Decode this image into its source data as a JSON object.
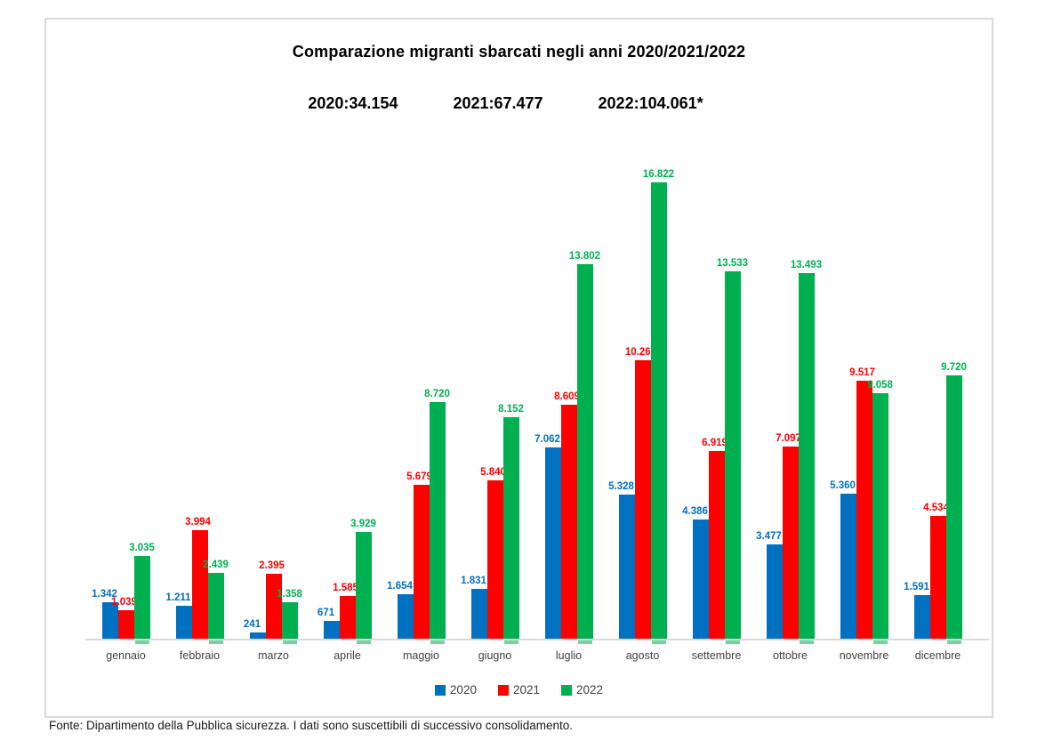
{
  "chart_data": {
    "type": "bar",
    "title": "Comparazione migranti sbarcati negli anni 2020/2021/2022",
    "totals": [
      "2020:34.154",
      "2021:67.477",
      "2022:104.061*"
    ],
    "categories": [
      "gennaio",
      "febbraio",
      "marzo",
      "aprile",
      "maggio",
      "giugno",
      "luglio",
      "agosto",
      "settembre",
      "ottobre",
      "novembre",
      "dicembre"
    ],
    "series": [
      {
        "name": "2020",
        "color": "#0070C0",
        "values": [
          1342,
          1211,
          241,
          671,
          1654,
          1831,
          7062,
          5328,
          4386,
          3477,
          5360,
          1591
        ],
        "labels": [
          "1.342",
          "1.211",
          "241",
          "671",
          "1.654",
          "1.831",
          "7.062",
          "5.328",
          "4.386",
          "3.477",
          "5.360",
          "1.591"
        ]
      },
      {
        "name": "2021",
        "color": "#FF0000",
        "values": [
          1039,
          3994,
          2395,
          1585,
          5679,
          5840,
          8609,
          10269,
          6919,
          7097,
          9517,
          4534
        ],
        "labels": [
          "1.039",
          "3.994",
          "2.395",
          "1.585",
          "5.679",
          "5.840",
          "8.609",
          "10.269",
          "6.919",
          "7.097",
          "9.517",
          "4.534"
        ]
      },
      {
        "name": "2022",
        "color": "#00B050",
        "values": [
          3035,
          2439,
          1358,
          3929,
          8720,
          8152,
          13802,
          16822,
          13533,
          13493,
          9058,
          9720
        ],
        "labels": [
          "3.035",
          "2.439",
          "1.358",
          "3.929",
          "8.720",
          "8.152",
          "13.802",
          "16.822",
          "13.533",
          "13.493",
          "9.058",
          "9.720"
        ]
      }
    ],
    "legend_position": "bottom",
    "grid": false,
    "data_labels": true,
    "ylim": [
      0,
      17000
    ],
    "axis_color": "#D9D9D9",
    "border_color": "#D9D9D9"
  },
  "footer": {
    "text": "Fonte: Dipartimento della Pubblica sicurezza. I dati sono suscettibili di successivo consolidamento."
  }
}
